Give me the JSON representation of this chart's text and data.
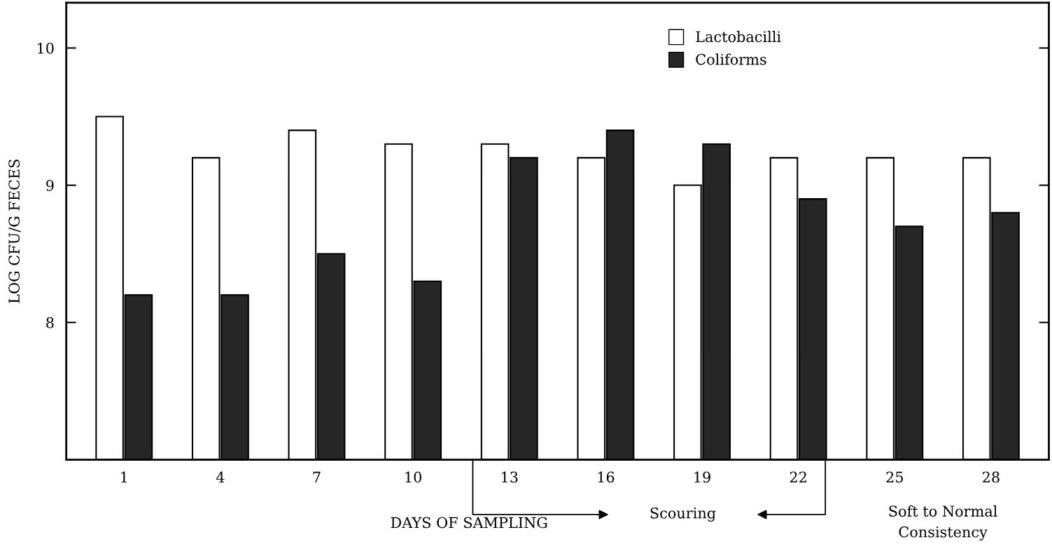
{
  "chart_data": {
    "type": "bar",
    "categories": [
      "1",
      "4",
      "7",
      "10",
      "13",
      "16",
      "19",
      "22",
      "25",
      "28"
    ],
    "series": [
      {
        "name": "Lactobacilli",
        "color": "#ffffff",
        "values": [
          9.5,
          9.2,
          9.4,
          9.3,
          9.3,
          9.2,
          9.0,
          9.2,
          9.2,
          9.2
        ]
      },
      {
        "name": "Coliforms",
        "color": "#262626",
        "values": [
          8.2,
          8.2,
          8.5,
          8.3,
          9.2,
          9.4,
          9.3,
          8.9,
          8.7,
          8.8
        ]
      }
    ],
    "xlabel": "DAYS OF SAMPLING",
    "ylabel": "LOG CFU/G FECES",
    "ylim": [
      7,
      10.33
    ],
    "yticks": [
      8,
      9,
      10
    ],
    "annotations": [
      "Scouring",
      "Soft to Normal\nConsistency"
    ],
    "legend": "top right",
    "grid": false
  }
}
